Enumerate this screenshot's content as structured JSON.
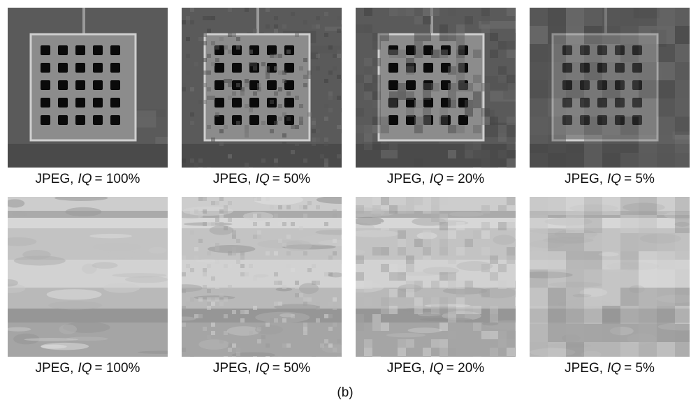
{
  "rows": [
    {
      "images": [
        {
          "caption": {
            "prefix": "JPEG,",
            "variable": "IQ",
            "relation": "= 100%"
          }
        },
        {
          "caption": {
            "prefix": "JPEG,",
            "variable": "IQ",
            "relation": "= 50%"
          }
        },
        {
          "caption": {
            "prefix": "JPEG,",
            "variable": "IQ",
            "relation": "= 20%"
          }
        },
        {
          "caption": {
            "prefix": "JPEG,",
            "variable": "IQ",
            "relation": "= 5%"
          }
        }
      ]
    },
    {
      "images": [
        {
          "caption": {
            "prefix": "JPEG,",
            "variable": "IQ",
            "relation": "= 100%"
          }
        },
        {
          "caption": {
            "prefix": "JPEG,",
            "variable": "IQ",
            "relation": "= 50%"
          }
        },
        {
          "caption": {
            "prefix": "JPEG,",
            "variable": "IQ",
            "relation": "= 20%"
          }
        },
        {
          "caption": {
            "prefix": "JPEG,",
            "variable": "IQ",
            "relation": "= 5%"
          }
        }
      ]
    }
  ],
  "panel_label": "(b)"
}
